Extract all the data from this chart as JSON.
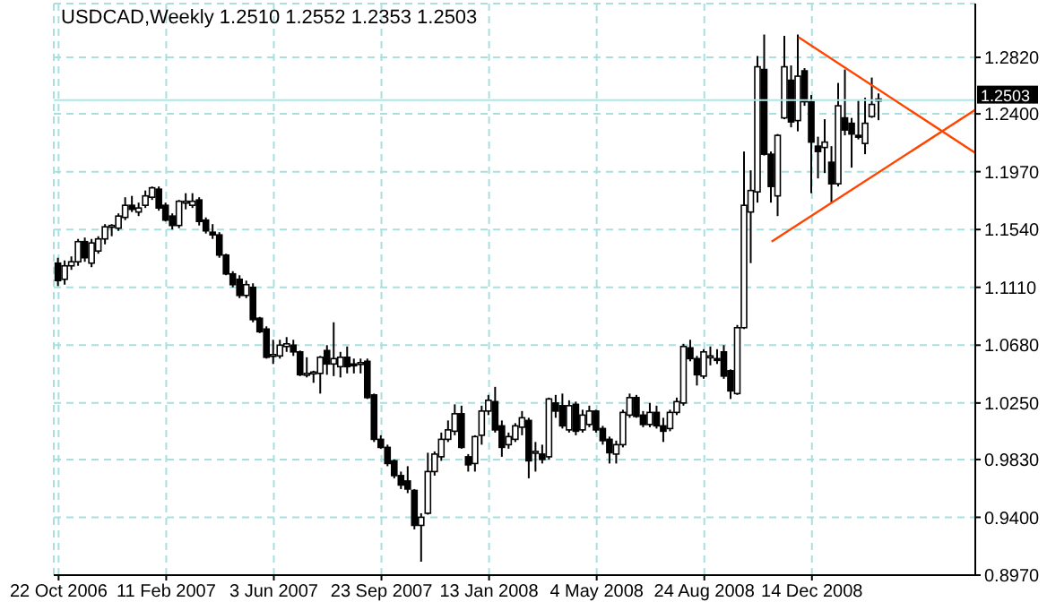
{
  "chart_data": {
    "type": "candlestick",
    "title": "USDCAD,Weekly 1.2510 1.2552 1.2353 1.2503",
    "x": [
      "2006-10-22",
      "2006-10-29",
      "2006-11-05",
      "2006-11-12",
      "2006-11-19",
      "2006-11-26",
      "2006-12-03",
      "2006-12-10",
      "2006-12-17",
      "2006-12-24",
      "2006-12-31",
      "2007-01-07",
      "2007-01-14",
      "2007-01-21",
      "2007-01-28",
      "2007-02-04",
      "2007-02-11",
      "2007-02-18",
      "2007-02-25",
      "2007-03-04",
      "2007-03-11",
      "2007-03-18",
      "2007-03-25",
      "2007-04-01",
      "2007-04-08",
      "2007-04-15",
      "2007-04-22",
      "2007-04-29",
      "2007-05-06",
      "2007-05-13",
      "2007-05-20",
      "2007-05-27",
      "2007-06-03",
      "2007-06-10",
      "2007-06-17",
      "2007-06-24",
      "2007-07-01",
      "2007-07-08",
      "2007-07-15",
      "2007-07-22",
      "2007-07-29",
      "2007-08-05",
      "2007-08-12",
      "2007-08-19",
      "2007-08-26",
      "2007-09-02",
      "2007-09-09",
      "2007-09-16",
      "2007-09-23",
      "2007-09-30",
      "2007-10-07",
      "2007-10-14",
      "2007-10-21",
      "2007-10-28",
      "2007-11-04",
      "2007-11-11",
      "2007-11-18",
      "2007-11-25",
      "2007-12-02",
      "2007-12-09",
      "2007-12-16",
      "2007-12-23",
      "2007-12-30",
      "2008-01-06",
      "2008-01-13",
      "2008-01-20",
      "2008-01-27",
      "2008-02-03",
      "2008-02-10",
      "2008-02-17",
      "2008-02-24",
      "2008-03-02",
      "2008-03-09",
      "2008-03-16",
      "2008-03-23",
      "2008-03-30",
      "2008-04-06",
      "2008-04-13",
      "2008-04-20",
      "2008-04-27",
      "2008-05-04",
      "2008-05-11",
      "2008-05-18",
      "2008-05-25",
      "2008-06-01",
      "2008-06-08",
      "2008-06-15",
      "2008-06-22",
      "2008-06-29",
      "2008-07-06",
      "2008-07-13",
      "2008-07-20",
      "2008-07-27",
      "2008-08-03",
      "2008-08-10",
      "2008-08-17",
      "2008-08-24",
      "2008-08-31",
      "2008-09-07",
      "2008-09-14",
      "2008-09-21",
      "2008-09-28",
      "2008-10-05",
      "2008-10-12",
      "2008-10-19",
      "2008-10-26",
      "2008-11-02",
      "2008-11-09",
      "2008-11-16",
      "2008-11-23",
      "2008-11-30",
      "2008-12-07",
      "2008-12-14",
      "2008-12-21",
      "2008-12-28",
      "2009-01-04",
      "2009-01-11",
      "2009-01-18",
      "2009-01-25",
      "2009-02-01",
      "2009-02-08",
      "2009-02-15",
      "2009-02-22"
    ],
    "ohlc": [
      [
        1.129,
        1.133,
        1.112,
        1.116
      ],
      [
        1.117,
        1.131,
        1.113,
        1.127
      ],
      [
        1.127,
        1.134,
        1.124,
        1.13
      ],
      [
        1.13,
        1.147,
        1.127,
        1.145
      ],
      [
        1.145,
        1.148,
        1.13,
        1.133
      ],
      [
        1.129,
        1.147,
        1.126,
        1.144
      ],
      [
        1.138,
        1.149,
        1.136,
        1.147
      ],
      [
        1.147,
        1.158,
        1.143,
        1.156
      ],
      [
        1.156,
        1.158,
        1.149,
        1.157
      ],
      [
        1.155,
        1.166,
        1.153,
        1.164
      ],
      [
        1.163,
        1.178,
        1.161,
        1.172
      ],
      [
        1.172,
        1.179,
        1.167,
        1.169
      ],
      [
        1.167,
        1.174,
        1.164,
        1.17
      ],
      [
        1.172,
        1.183,
        1.17,
        1.179
      ],
      [
        1.178,
        1.186,
        1.176,
        1.185
      ],
      [
        1.184,
        1.186,
        1.168,
        1.17
      ],
      [
        1.172,
        1.174,
        1.16,
        1.161
      ],
      [
        1.164,
        1.166,
        1.154,
        1.157
      ],
      [
        1.157,
        1.176,
        1.155,
        1.175
      ],
      [
        1.174,
        1.181,
        1.169,
        1.175
      ],
      [
        1.172,
        1.181,
        1.17,
        1.175
      ],
      [
        1.176,
        1.178,
        1.157,
        1.16
      ],
      [
        1.161,
        1.163,
        1.151,
        1.153
      ],
      [
        1.152,
        1.158,
        1.147,
        1.15
      ],
      [
        1.15,
        1.152,
        1.133,
        1.135
      ],
      [
        1.135,
        1.136,
        1.12,
        1.121
      ],
      [
        1.121,
        1.123,
        1.111,
        1.113
      ],
      [
        1.117,
        1.12,
        1.103,
        1.105
      ],
      [
        1.105,
        1.116,
        1.103,
        1.113
      ],
      [
        1.111,
        1.114,
        1.085,
        1.087
      ],
      [
        1.088,
        1.089,
        1.077,
        1.078
      ],
      [
        1.08,
        1.082,
        1.058,
        1.059
      ],
      [
        1.06,
        1.072,
        1.054,
        1.061
      ],
      [
        1.06,
        1.072,
        1.058,
        1.068
      ],
      [
        1.067,
        1.074,
        1.063,
        1.069
      ],
      [
        1.068,
        1.072,
        1.06,
        1.063
      ],
      [
        1.063,
        1.064,
        1.045,
        1.046
      ],
      [
        1.047,
        1.059,
        1.044,
        1.047
      ],
      [
        1.047,
        1.049,
        1.04,
        1.048
      ],
      [
        1.047,
        1.06,
        1.032,
        1.059
      ],
      [
        1.064,
        1.068,
        1.046,
        1.054
      ],
      [
        1.054,
        1.085,
        1.045,
        1.058
      ],
      [
        1.052,
        1.063,
        1.044,
        1.059
      ],
      [
        1.059,
        1.067,
        1.047,
        1.052
      ],
      [
        1.054,
        1.058,
        1.047,
        1.053
      ],
      [
        1.054,
        1.058,
        1.047,
        1.055
      ],
      [
        1.056,
        1.058,
        1.028,
        1.029
      ],
      [
        1.031,
        1.032,
        0.996,
        0.998
      ],
      [
        0.998,
        1.001,
        0.991,
        0.992
      ],
      [
        0.992,
        0.994,
        0.978,
        0.98
      ],
      [
        0.982,
        0.983,
        0.969,
        0.971
      ],
      [
        0.971,
        0.974,
        0.961,
        0.964
      ],
      [
        0.967,
        0.978,
        0.958,
        0.961
      ],
      [
        0.96,
        0.961,
        0.931,
        0.934
      ],
      [
        0.934,
        0.943,
        0.907,
        0.94
      ],
      [
        0.943,
        0.988,
        0.942,
        0.974
      ],
      [
        0.974,
        0.989,
        0.971,
        0.987
      ],
      [
        0.985,
        1.003,
        0.982,
        0.998
      ],
      [
        0.998,
        1.012,
        0.996,
        1.005
      ],
      [
        1.004,
        1.024,
        1.001,
        1.017
      ],
      [
        1.017,
        1.023,
        0.991,
        0.992
      ],
      [
        0.985,
        0.987,
        0.974,
        0.979
      ],
      [
        0.98,
        1.001,
        0.974,
        1.0
      ],
      [
        1.001,
        1.023,
        0.994,
        1.019
      ],
      [
        1.019,
        1.031,
        1.016,
        1.027
      ],
      [
        1.026,
        1.037,
        1.003,
        1.005
      ],
      [
        1.008,
        1.012,
        0.985,
        0.992
      ],
      [
        0.994,
        1.003,
        0.991,
        1.0
      ],
      [
        0.998,
        1.01,
        0.996,
        1.008
      ],
      [
        1.007,
        1.019,
        1.001,
        1.014
      ],
      [
        1.012,
        1.014,
        0.969,
        0.982
      ],
      [
        0.988,
        0.996,
        0.974,
        0.989
      ],
      [
        0.987,
        0.994,
        0.98,
        0.983
      ],
      [
        0.985,
        1.029,
        0.983,
        1.028
      ],
      [
        1.025,
        1.031,
        1.014,
        1.019
      ],
      [
        1.023,
        1.032,
        1.006,
        1.008
      ],
      [
        1.005,
        1.027,
        1.003,
        1.023
      ],
      [
        1.024,
        1.026,
        1.001,
        1.004
      ],
      [
        1.005,
        1.02,
        1.003,
        1.016
      ],
      [
        1.009,
        1.023,
        1.007,
        1.019
      ],
      [
        1.019,
        1.02,
        1.003,
        1.005
      ],
      [
        1.006,
        1.008,
        0.994,
        0.997
      ],
      [
        0.998,
        1.0,
        0.98,
        0.988
      ],
      [
        0.987,
        0.997,
        0.98,
        0.994
      ],
      [
        0.994,
        1.02,
        0.992,
        1.018
      ],
      [
        1.016,
        1.032,
        1.014,
        1.029
      ],
      [
        1.029,
        1.031,
        1.014,
        1.015
      ],
      [
        1.016,
        1.019,
        1.007,
        1.009
      ],
      [
        1.009,
        1.025,
        1.007,
        1.018
      ],
      [
        1.018,
        1.023,
        1.006,
        1.008
      ],
      [
        1.008,
        1.014,
        0.996,
        1.004
      ],
      [
        1.006,
        1.02,
        1.004,
        1.018
      ],
      [
        1.018,
        1.029,
        1.016,
        1.026
      ],
      [
        1.025,
        1.069,
        1.023,
        1.067
      ],
      [
        1.066,
        1.072,
        1.056,
        1.058
      ],
      [
        1.058,
        1.06,
        1.038,
        1.046
      ],
      [
        1.045,
        1.065,
        1.043,
        1.063
      ],
      [
        1.059,
        1.067,
        1.053,
        1.06
      ],
      [
        1.058,
        1.065,
        1.054,
        1.057
      ],
      [
        1.063,
        1.068,
        1.043,
        1.045
      ],
      [
        1.049,
        1.05,
        1.028,
        1.034
      ],
      [
        1.032,
        1.083,
        1.031,
        1.081
      ],
      [
        1.081,
        1.212,
        1.08,
        1.172
      ],
      [
        1.167,
        1.198,
        1.129,
        1.183
      ],
      [
        1.182,
        1.283,
        1.174,
        1.275
      ],
      [
        1.273,
        1.299,
        1.209,
        1.21
      ],
      [
        1.21,
        1.212,
        1.174,
        1.186
      ],
      [
        1.179,
        1.225,
        1.164,
        1.224
      ],
      [
        1.237,
        1.298,
        1.236,
        1.275
      ],
      [
        1.265,
        1.276,
        1.23,
        1.234
      ],
      [
        1.235,
        1.299,
        1.227,
        1.268
      ],
      [
        1.272,
        1.274,
        1.246,
        1.249
      ],
      [
        1.249,
        1.254,
        1.181,
        1.219
      ],
      [
        1.216,
        1.223,
        1.192,
        1.212
      ],
      [
        1.215,
        1.236,
        1.196,
        1.219
      ],
      [
        1.204,
        1.216,
        1.174,
        1.188
      ],
      [
        1.188,
        1.263,
        1.186,
        1.246
      ],
      [
        1.237,
        1.273,
        1.224,
        1.228
      ],
      [
        1.233,
        1.237,
        1.2,
        1.225
      ],
      [
        1.224,
        1.25,
        1.221,
        1.223
      ],
      [
        1.218,
        1.252,
        1.21,
        1.233
      ],
      [
        1.238,
        1.267,
        1.237,
        1.247
      ],
      [
        1.251,
        1.2552,
        1.2353,
        1.2503
      ]
    ],
    "series": [
      {
        "type": "line",
        "x": [
          "2008-11-30",
          "2009-06-02"
        ],
        "values": [
          1.297,
          1.211
        ],
        "color": "#ff4500"
      },
      {
        "type": "line",
        "x": [
          "2008-11-02",
          "2009-06-02"
        ],
        "values": [
          1.145,
          1.243
        ],
        "color": "#ff4500"
      }
    ],
    "xlim": [
      "2006-10-17",
      "2009-06-02"
    ],
    "xticks": [
      {
        "value": "2006-10-22",
        "label": "22 Oct 2006"
      },
      {
        "value": "2007-02-11",
        "label": "11 Feb 2007"
      },
      {
        "value": "2007-06-03",
        "label": "3 Jun 2007"
      },
      {
        "value": "2007-09-23",
        "label": "23 Sep 2007"
      },
      {
        "value": "2008-01-13",
        "label": "13 Jan 2008"
      },
      {
        "value": "2008-05-04",
        "label": "4 May 2008"
      },
      {
        "value": "2008-08-24",
        "label": "24 Aug 2008"
      },
      {
        "value": "2008-12-14",
        "label": "14 Dec 2008"
      }
    ],
    "ylim": [
      0.897,
      1.322
    ],
    "yticks": [
      {
        "value": 0.897,
        "label": "0.8970"
      },
      {
        "value": 0.94,
        "label": "0.9400"
      },
      {
        "value": 0.983,
        "label": "0.9830"
      },
      {
        "value": 1.025,
        "label": "1.0250"
      },
      {
        "value": 1.068,
        "label": "1.0680"
      },
      {
        "value": 1.111,
        "label": "1.1110"
      },
      {
        "value": 1.154,
        "label": "1.1540"
      },
      {
        "value": 1.197,
        "label": "1.1970"
      },
      {
        "value": 1.24,
        "label": "1.2400"
      },
      {
        "value": 1.282,
        "label": "1.2820"
      }
    ],
    "grid": true,
    "ref_lines": [
      {
        "axis": "y",
        "value": 1.2503,
        "label": "1.2503",
        "color": "#a8e8e8"
      }
    ]
  }
}
